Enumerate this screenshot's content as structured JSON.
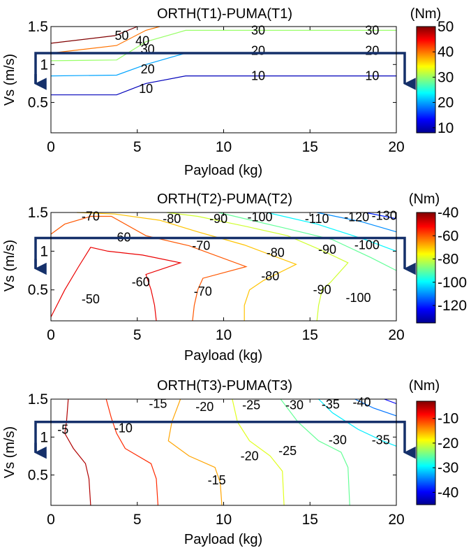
{
  "chart_data": [
    {
      "type": "contour",
      "title": "ORTH(T1)-PUMA(T1)",
      "xlabel": "Payload (kg)",
      "ylabel": "Vs (m/s)",
      "xlim": [
        0,
        20
      ],
      "ylim": [
        0.1,
        1.5
      ],
      "xticks": [
        "0",
        "5",
        "10",
        "15",
        "20"
      ],
      "yticks": [
        "0.5",
        "1",
        "1.5"
      ],
      "colorbar": {
        "unit": "(Nm)",
        "range": [
          8,
          50
        ],
        "ticks": [
          "10",
          "20",
          "30",
          "40",
          "50"
        ]
      },
      "contours": [
        {
          "level": 10,
          "points": [
            [
              0,
              0.6
            ],
            [
              3.8,
              0.6
            ],
            [
              5.5,
              0.75
            ],
            [
              7.8,
              0.85
            ],
            [
              20,
              0.85
            ]
          ]
        },
        {
          "level": 20,
          "points": [
            [
              0,
              0.85
            ],
            [
              3.8,
              0.86
            ],
            [
              5.5,
              1.0
            ],
            [
              7.8,
              1.15
            ],
            [
              20,
              1.15
            ]
          ]
        },
        {
          "level": 30,
          "points": [
            [
              0,
              1.05
            ],
            [
              3.8,
              1.06
            ],
            [
              5.5,
              1.3
            ],
            [
              7.8,
              1.45
            ],
            [
              20,
              1.45
            ]
          ]
        },
        {
          "level": 40,
          "points": [
            [
              0,
              1.15
            ],
            [
              3.8,
              1.25
            ],
            [
              5.5,
              1.45
            ],
            [
              6.3,
              1.5
            ]
          ]
        },
        {
          "level": 50,
          "points": [
            [
              0,
              1.28
            ],
            [
              3.7,
              1.38
            ],
            [
              5.0,
              1.5
            ]
          ]
        }
      ],
      "labels": [
        {
          "text": "50",
          "x": 4.1,
          "y": 1.38
        },
        {
          "text": "40",
          "x": 5.3,
          "y": 1.31
        },
        {
          "text": "30",
          "x": 5.6,
          "y": 1.2
        },
        {
          "text": "20",
          "x": 5.6,
          "y": 0.94
        },
        {
          "text": "10",
          "x": 5.5,
          "y": 0.68
        },
        {
          "text": "30",
          "x": 12.0,
          "y": 1.45
        },
        {
          "text": "30",
          "x": 18.6,
          "y": 1.45
        },
        {
          "text": "20",
          "x": 12.0,
          "y": 1.18
        },
        {
          "text": "20",
          "x": 18.6,
          "y": 1.18
        },
        {
          "text": "10",
          "x": 12.0,
          "y": 0.85
        },
        {
          "text": "10",
          "x": 18.6,
          "y": 0.85
        }
      ],
      "annotation_y": 1.15
    },
    {
      "type": "contour",
      "title": "ORTH(T2)-PUMA(T2)",
      "xlabel": "Payload (kg)",
      "ylabel": "Vs (m/s)",
      "xlim": [
        0,
        20
      ],
      "ylim": [
        0.1,
        1.5
      ],
      "xticks": [
        "0",
        "5",
        "10",
        "15",
        "20"
      ],
      "yticks": [
        "0.5",
        "1",
        "1.5"
      ],
      "colorbar": {
        "unit": "(Nm)",
        "range": [
          -135,
          -40
        ],
        "ticks": [
          "-40",
          "-60",
          "-80",
          "-100",
          "-120"
        ]
      },
      "contours": [
        {
          "level": -50,
          "points": [
            [
              0,
              0.15
            ],
            [
              0.8,
              0.5
            ],
            [
              1.6,
              0.8
            ],
            [
              2.3,
              1.05
            ],
            [
              3.3,
              1.0
            ],
            [
              5.3,
              0.95
            ],
            [
              7.5,
              0.85
            ],
            [
              5.5,
              0.7
            ],
            [
              5.8,
              0.5
            ],
            [
              6.0,
              0.3
            ],
            [
              6.1,
              0.1
            ]
          ]
        },
        {
          "level": -60,
          "points": [
            [
              0,
              1.22
            ],
            [
              0.8,
              1.35
            ],
            [
              2.3,
              1.45
            ],
            [
              3.5,
              1.45
            ],
            [
              5.5,
              1.2
            ],
            [
              8.0,
              1.07
            ],
            [
              11.3,
              0.8
            ],
            [
              8.8,
              0.65
            ],
            [
              8.5,
              0.5
            ],
            [
              8.3,
              0.3
            ],
            [
              8.2,
              0.1
            ]
          ]
        },
        {
          "level": -70,
          "points": [
            [
              1.5,
              1.5
            ],
            [
              3.7,
              1.48
            ],
            [
              6.3,
              1.4
            ],
            [
              8.5,
              1.25
            ],
            [
              11.2,
              1.08
            ],
            [
              14.2,
              0.83
            ],
            [
              12.3,
              0.62
            ],
            [
              11.5,
              0.5
            ],
            [
              11.2,
              0.3
            ],
            [
              11.2,
              0.1
            ]
          ]
        },
        {
          "level": -80,
          "points": [
            [
              6.7,
              1.5
            ],
            [
              8.5,
              1.45
            ],
            [
              11.3,
              1.32
            ],
            [
              13.7,
              1.2
            ],
            [
              15.8,
              1.0
            ],
            [
              17.2,
              0.85
            ],
            [
              16.2,
              0.6
            ],
            [
              15.7,
              0.5
            ],
            [
              15.5,
              0.3
            ],
            [
              15.4,
              0.1
            ]
          ]
        },
        {
          "level": -90,
          "points": [
            [
              9.7,
              1.5
            ],
            [
              13.5,
              1.3
            ],
            [
              16.3,
              1.15
            ],
            [
              18.5,
              0.92
            ],
            [
              20,
              0.75
            ]
          ]
        },
        {
          "level": -100,
          "points": [
            [
              12.5,
              1.5
            ],
            [
              15.4,
              1.35
            ],
            [
              18.2,
              1.15
            ],
            [
              20,
              1.0
            ]
          ]
        },
        {
          "level": -110,
          "points": [
            [
              15.4,
              1.5
            ],
            [
              18.0,
              1.38
            ],
            [
              20,
              1.25
            ]
          ]
        },
        {
          "level": -120,
          "points": [
            [
              18.2,
              1.5
            ],
            [
              20,
              1.42
            ]
          ]
        }
      ],
      "labels": [
        {
          "text": "-70",
          "x": 2.3,
          "y": 1.45
        },
        {
          "text": "-80",
          "x": 7.0,
          "y": 1.42
        },
        {
          "text": "-90",
          "x": 9.7,
          "y": 1.42
        },
        {
          "text": "-100",
          "x": 12.1,
          "y": 1.44
        },
        {
          "text": "-110",
          "x": 15.4,
          "y": 1.42
        },
        {
          "text": "-120",
          "x": 17.7,
          "y": 1.44
        },
        {
          "text": "-130",
          "x": 19.3,
          "y": 1.46
        },
        {
          "text": "-60",
          "x": 4.1,
          "y": 1.18
        },
        {
          "text": "-70",
          "x": 8.7,
          "y": 1.07
        },
        {
          "text": "-80",
          "x": 13.0,
          "y": 0.98
        },
        {
          "text": "-90",
          "x": 16.0,
          "y": 1.02
        },
        {
          "text": "-100",
          "x": 18.3,
          "y": 1.08
        },
        {
          "text": "-60",
          "x": 5.2,
          "y": 0.6
        },
        {
          "text": "-50",
          "x": 2.3,
          "y": 0.38
        },
        {
          "text": "-70",
          "x": 8.8,
          "y": 0.48
        },
        {
          "text": "-80",
          "x": 12.7,
          "y": 0.68
        },
        {
          "text": "-90",
          "x": 15.7,
          "y": 0.5
        },
        {
          "text": "-100",
          "x": 17.8,
          "y": 0.4
        }
      ],
      "annotation_y": 1.17
    },
    {
      "type": "contour",
      "title": "ORTH(T3)-PUMA(T3)",
      "xlabel": "Payload (kg)",
      "ylabel": "Vs (m/s)",
      "xlim": [
        0,
        20
      ],
      "ylim": [
        0.1,
        1.5
      ],
      "xticks": [
        "0",
        "5",
        "10",
        "15",
        "20"
      ],
      "yticks": [
        "0.5",
        "1",
        "1.5"
      ],
      "colorbar": {
        "unit": "(Nm)",
        "range": [
          -45,
          -3
        ],
        "ticks": [
          "-10",
          "-20",
          "-30",
          "-40"
        ]
      },
      "contours": [
        {
          "level": -5,
          "points": [
            [
              1.0,
              1.5
            ],
            [
              0.9,
              1.2
            ],
            [
              0.8,
              1.05
            ],
            [
              1.3,
              0.85
            ],
            [
              2.0,
              0.65
            ],
            [
              2.2,
              0.45
            ],
            [
              2.3,
              0.1
            ]
          ]
        },
        {
          "level": -10,
          "points": [
            [
              3.2,
              1.5
            ],
            [
              3.5,
              1.25
            ],
            [
              3.8,
              1.05
            ],
            [
              4.3,
              0.85
            ],
            [
              5.8,
              0.65
            ],
            [
              6.1,
              0.45
            ],
            [
              6.2,
              0.1
            ]
          ]
        },
        {
          "level": -15,
          "points": [
            [
              7.5,
              1.5
            ],
            [
              7.0,
              1.2
            ],
            [
              6.8,
              0.95
            ],
            [
              8.0,
              0.75
            ],
            [
              9.5,
              0.6
            ],
            [
              9.8,
              0.4
            ],
            [
              9.9,
              0.1
            ]
          ]
        },
        {
          "level": -20,
          "points": [
            [
              10.5,
              1.5
            ],
            [
              10.8,
              1.2
            ],
            [
              11.5,
              0.95
            ],
            [
              12.7,
              0.75
            ],
            [
              13.4,
              0.55
            ],
            [
              13.5,
              0.1
            ]
          ]
        },
        {
          "level": -25,
          "points": [
            [
              13.3,
              1.5
            ],
            [
              14.3,
              1.2
            ],
            [
              15.5,
              0.95
            ],
            [
              16.8,
              0.8
            ],
            [
              17.2,
              0.6
            ],
            [
              17.3,
              0.1
            ]
          ]
        },
        {
          "level": -30,
          "points": [
            [
              15.5,
              1.5
            ],
            [
              16.3,
              1.32
            ],
            [
              17.8,
              1.1
            ],
            [
              19.2,
              0.95
            ],
            [
              20,
              0.88
            ]
          ]
        },
        {
          "level": -35,
          "points": [
            [
              17.6,
              1.5
            ],
            [
              18.7,
              1.38
            ],
            [
              20,
              1.28
            ]
          ]
        },
        {
          "level": -40,
          "points": [
            [
              19.3,
              1.5
            ],
            [
              20,
              1.44
            ]
          ]
        }
      ],
      "labels": [
        {
          "text": "-15",
          "x": 6.2,
          "y": 1.44
        },
        {
          "text": "-20",
          "x": 8.9,
          "y": 1.4
        },
        {
          "text": "-25",
          "x": 11.6,
          "y": 1.42
        },
        {
          "text": "-30",
          "x": 14.1,
          "y": 1.42
        },
        {
          "text": "-35",
          "x": 16.2,
          "y": 1.43
        },
        {
          "text": "-40",
          "x": 18.0,
          "y": 1.46
        },
        {
          "text": "-5",
          "x": 0.7,
          "y": 1.1
        },
        {
          "text": "-10",
          "x": 4.2,
          "y": 1.12
        },
        {
          "text": "-30",
          "x": 16.6,
          "y": 0.96
        },
        {
          "text": "-35",
          "x": 19.1,
          "y": 0.96
        },
        {
          "text": "-20",
          "x": 11.5,
          "y": 0.75
        },
        {
          "text": "-25",
          "x": 13.7,
          "y": 0.82
        },
        {
          "text": "-15",
          "x": 9.6,
          "y": 0.43
        }
      ],
      "annotation_y": 1.2
    }
  ]
}
